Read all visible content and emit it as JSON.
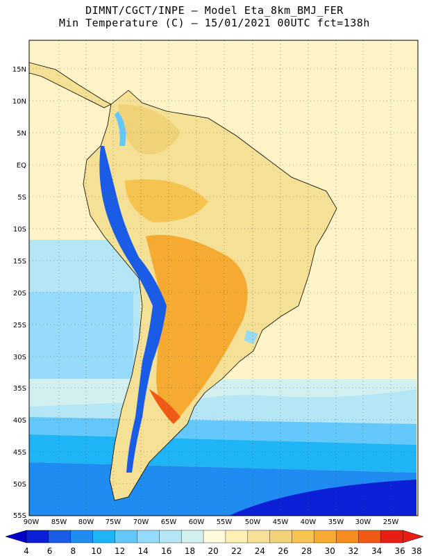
{
  "header": {
    "line1": "DIMNT/CGCT/INPE –   Model Eta_8km_BMJ_FER",
    "line2": "Min Temperature (C) –  15/01/2021 00UTC fct=138h"
  },
  "map": {
    "lat_labels": [
      "15N",
      "10N",
      "5N",
      "EQ",
      "5S",
      "10S",
      "15S",
      "20S",
      "25S",
      "30S",
      "35S",
      "40S",
      "45S",
      "50S",
      "55S"
    ],
    "lon_labels": [
      "90W",
      "85W",
      "80W",
      "75W",
      "70W",
      "65W",
      "60W",
      "55W",
      "50W",
      "45W",
      "40W",
      "35W",
      "30W",
      "25W"
    ],
    "region": "South America"
  },
  "colorbar": {
    "labels": [
      "4",
      "6",
      "8",
      "10",
      "12",
      "14",
      "16",
      "18",
      "20",
      "22",
      "24",
      "26",
      "28",
      "30",
      "32",
      "34",
      "36",
      "38"
    ],
    "colors": [
      "#0a1fd6",
      "#1a5ce6",
      "#1e8cf0",
      "#1eb4f5",
      "#64c8fa",
      "#96dcfa",
      "#b4e6f5",
      "#d2f0f0",
      "#fffadc",
      "#fff0b4",
      "#f5e196",
      "#f0d278",
      "#f5c350",
      "#f5aa32",
      "#f58c1e",
      "#f05a14",
      "#e61e14"
    ],
    "min_color": "#0000c8",
    "max_color": "#e61e14"
  }
}
